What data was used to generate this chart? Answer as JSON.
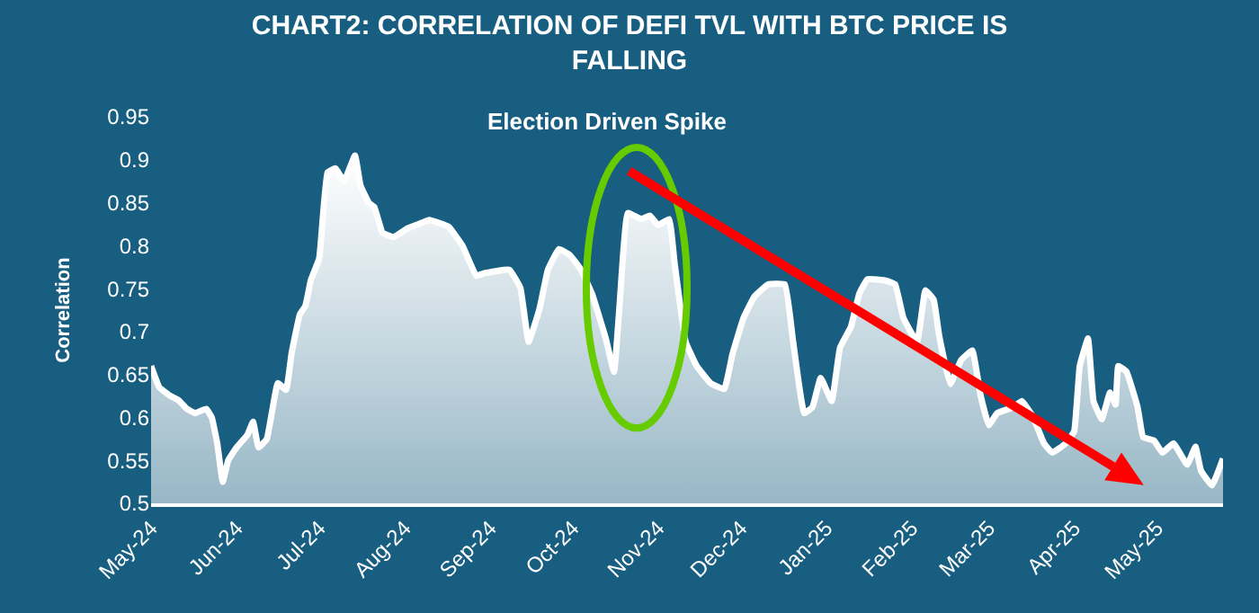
{
  "chart_data": {
    "type": "area",
    "title": "CHART2: CORRELATION OF DEFI TVL WITH BTC PRICE IS FALLING",
    "ylabel": "Correlation",
    "annotations": [
      "Election Driven Spike"
    ],
    "x": [
      "2024-05-01",
      "2024-05-04",
      "2024-05-08",
      "2024-05-11",
      "2024-05-14",
      "2024-05-17",
      "2024-05-21",
      "2024-05-23",
      "2024-05-25",
      "2024-05-27",
      "2024-05-29",
      "2024-06-01",
      "2024-06-05",
      "2024-06-07",
      "2024-06-09",
      "2024-06-12",
      "2024-06-16",
      "2024-06-19",
      "2024-06-21",
      "2024-06-24",
      "2024-06-26",
      "2024-06-28",
      "2024-07-01",
      "2024-07-04",
      "2024-07-07",
      "2024-07-10",
      "2024-07-14",
      "2024-07-16",
      "2024-07-19",
      "2024-07-21",
      "2024-07-24",
      "2024-07-28",
      "2024-08-02",
      "2024-08-06",
      "2024-08-10",
      "2024-08-17",
      "2024-08-22",
      "2024-08-27",
      "2024-08-30",
      "2024-09-08",
      "2024-09-12",
      "2024-09-15",
      "2024-09-19",
      "2024-09-22",
      "2024-09-26",
      "2024-09-30",
      "2024-10-04",
      "2024-10-08",
      "2024-10-13",
      "2024-10-16",
      "2024-10-18",
      "2024-10-21",
      "2024-10-26",
      "2024-10-29",
      "2024-11-01",
      "2024-11-05",
      "2024-11-07",
      "2024-11-11",
      "2024-11-15",
      "2024-11-20",
      "2024-11-25",
      "2024-11-28",
      "2024-12-02",
      "2024-12-06",
      "2024-12-11",
      "2024-12-17",
      "2024-12-20",
      "2024-12-24",
      "2024-12-27",
      "2024-12-30",
      "2025-01-03",
      "2025-01-06",
      "2025-01-10",
      "2025-01-13",
      "2025-01-16",
      "2025-01-23",
      "2025-01-26",
      "2025-01-29",
      "2025-02-03",
      "2025-02-06",
      "2025-02-09",
      "2025-02-11",
      "2025-02-15",
      "2025-02-19",
      "2025-02-23",
      "2025-02-26",
      "2025-03-01",
      "2025-03-04",
      "2025-03-10",
      "2025-03-13",
      "2025-03-17",
      "2025-03-21",
      "2025-03-24",
      "2025-03-29",
      "2025-04-01",
      "2025-04-03",
      "2025-04-06",
      "2025-04-08",
      "2025-04-11",
      "2025-04-14",
      "2025-04-16",
      "2025-04-17",
      "2025-04-20",
      "2025-04-24",
      "2025-04-26",
      "2025-04-30",
      "2025-05-03",
      "2025-05-07",
      "2025-05-12",
      "2025-05-15",
      "2025-05-17",
      "2025-05-21",
      "2025-05-25"
    ],
    "series": [
      {
        "color": "#ffffff",
        "values": [
          0.66,
          0.635,
          0.625,
          0.62,
          0.61,
          0.605,
          0.61,
          0.6,
          0.57,
          0.525,
          0.55,
          0.565,
          0.58,
          0.595,
          0.565,
          0.575,
          0.64,
          0.632,
          0.675,
          0.72,
          0.73,
          0.76,
          0.785,
          0.885,
          0.89,
          0.875,
          0.905,
          0.87,
          0.85,
          0.845,
          0.815,
          0.81,
          0.82,
          0.825,
          0.83,
          0.822,
          0.8,
          0.765,
          0.768,
          0.772,
          0.751,
          0.688,
          0.727,
          0.772,
          0.796,
          0.789,
          0.772,
          0.744,
          0.692,
          0.653,
          0.73,
          0.838,
          0.831,
          0.835,
          0.824,
          0.831,
          0.779,
          0.688,
          0.66,
          0.64,
          0.633,
          0.674,
          0.716,
          0.741,
          0.755,
          0.755,
          0.688,
          0.605,
          0.612,
          0.646,
          0.619,
          0.681,
          0.706,
          0.744,
          0.761,
          0.759,
          0.755,
          0.716,
          0.688,
          0.748,
          0.737,
          0.695,
          0.639,
          0.667,
          0.678,
          0.626,
          0.591,
          0.605,
          0.612,
          0.619,
          0.601,
          0.57,
          0.559,
          0.57,
          0.584,
          0.66,
          0.692,
          0.619,
          0.598,
          0.629,
          0.615,
          0.66,
          0.653,
          0.612,
          0.577,
          0.573,
          0.559,
          0.57,
          0.545,
          0.566,
          0.538,
          0.521,
          0.552
        ]
      }
    ],
    "xlim": [
      "2024-05-01",
      "2025-05-25"
    ],
    "xticks": [
      {
        "value": "2024-05-01",
        "label": "May-24"
      },
      {
        "value": "2024-06-01",
        "label": "Jun-24"
      },
      {
        "value": "2024-07-01",
        "label": "Jul-24"
      },
      {
        "value": "2024-08-01",
        "label": "Aug-24"
      },
      {
        "value": "2024-09-01",
        "label": "Sep-24"
      },
      {
        "value": "2024-10-01",
        "label": "Oct-24"
      },
      {
        "value": "2024-11-01",
        "label": "Nov-24"
      },
      {
        "value": "2024-12-01",
        "label": "Dec-24"
      },
      {
        "value": "2025-01-01",
        "label": "Jan-25"
      },
      {
        "value": "2025-02-01",
        "label": "Feb-25"
      },
      {
        "value": "2025-03-01",
        "label": "Mar-25"
      },
      {
        "value": "2025-04-01",
        "label": "Apr-25"
      },
      {
        "value": "2025-05-01",
        "label": "May-25"
      }
    ],
    "ylim": [
      0.5,
      0.95
    ],
    "yticks": [
      0.5,
      0.55,
      0.6,
      0.65,
      0.7,
      0.75,
      0.8,
      0.85,
      0.9,
      0.95
    ]
  }
}
